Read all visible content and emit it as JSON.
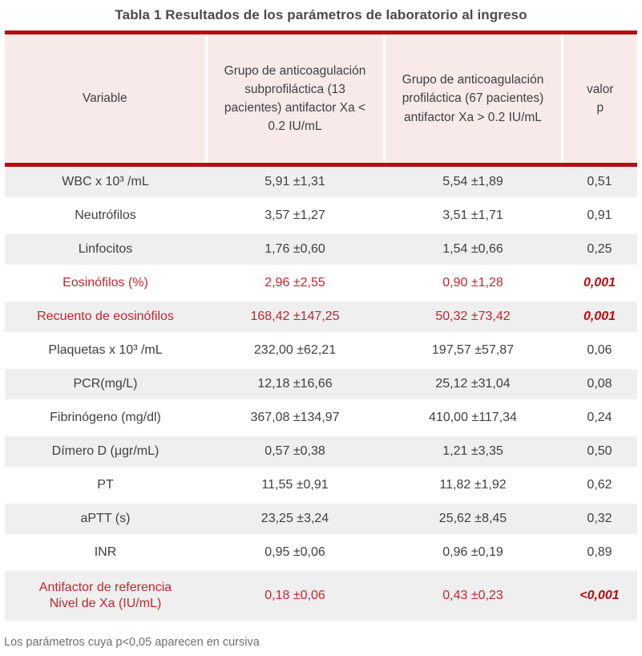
{
  "title": "Tabla 1 Resultados de los parámetros de laboratorio al ingreso",
  "colors": {
    "accent_red_line": "#b70d12",
    "significant_text_red": "#c2262e",
    "header_pink_bg": "#f9eaea",
    "zebra_gray_bg": "#efefef"
  },
  "table": {
    "columns": [
      "Variable",
      "Grupo de anticoagulación subprofiláctica (13 pacientes) antifactor Xa < 0.2 IU/mL",
      "Grupo de anticoagulación profiláctica (67 pacientes) antifactor Xa > 0.2 IU/mL",
      "valor\np"
    ],
    "rows": [
      {
        "variable": "WBC x 10³ /mL",
        "subprofilactica": "5,91 ±1,31",
        "profilactica": "5,54 ±1,89",
        "p": "0,51",
        "significant": false
      },
      {
        "variable": "Neutrófilos",
        "subprofilactica": "3,57 ±1,27",
        "profilactica": "3,51 ±1,71",
        "p": "0,91",
        "significant": false
      },
      {
        "variable": "Linfocitos",
        "subprofilactica": "1,76 ±0,60",
        "profilactica": "1,54 ±0,66",
        "p": "0,25",
        "significant": false
      },
      {
        "variable": "Eosinófilos (%)",
        "subprofilactica": "2,96 ±2,55",
        "profilactica": "0,90 ±1,28",
        "p": "0,001",
        "significant": true
      },
      {
        "variable": "Recuento de eosinófilos",
        "subprofilactica": "168,42 ±147,25",
        "profilactica": "50,32 ±73,42",
        "p": "0,001",
        "significant": true
      },
      {
        "variable": "Plaquetas x 10³ /mL",
        "subprofilactica": "232,00 ±62,21",
        "profilactica": "197,57 ±57,87",
        "p": "0,06",
        "significant": false
      },
      {
        "variable": "PCR(mg/L)",
        "subprofilactica": "12,18 ±16,66",
        "profilactica": "25,12 ±31,04",
        "p": "0,08",
        "significant": false
      },
      {
        "variable": "Fibrinógeno (mg/dl)",
        "subprofilactica": "367,08 ±134,97",
        "profilactica": "410,00 ±117,34",
        "p": "0,24",
        "significant": false
      },
      {
        "variable": "Dímero D (μgr/mL)",
        "subprofilactica": "0,57 ±0,38",
        "profilactica": "1,21 ±3,35",
        "p": "0,50",
        "significant": false
      },
      {
        "variable": "PT",
        "subprofilactica": "11,55 ±0,91",
        "profilactica": "11,82 ±1,92",
        "p": "0,62",
        "significant": false
      },
      {
        "variable": "aPTT (s)",
        "subprofilactica": "23,25 ±3,24",
        "profilactica": "25,62 ±8,45",
        "p": "0,32",
        "significant": false
      },
      {
        "variable": "INR",
        "subprofilactica": "0,95 ±0,06",
        "profilactica": "0,96 ±0,19",
        "p": "0,89",
        "significant": false
      },
      {
        "variable": "Antifactor de referencia\nNivel de Xa (IU/mL)",
        "subprofilactica": "0,18 ±0,06",
        "profilactica": "0,43 ±0,23",
        "p": "<0,001",
        "significant": true
      }
    ]
  },
  "footnote": "Los parámetros cuya p<0,05 aparecen en cursiva"
}
